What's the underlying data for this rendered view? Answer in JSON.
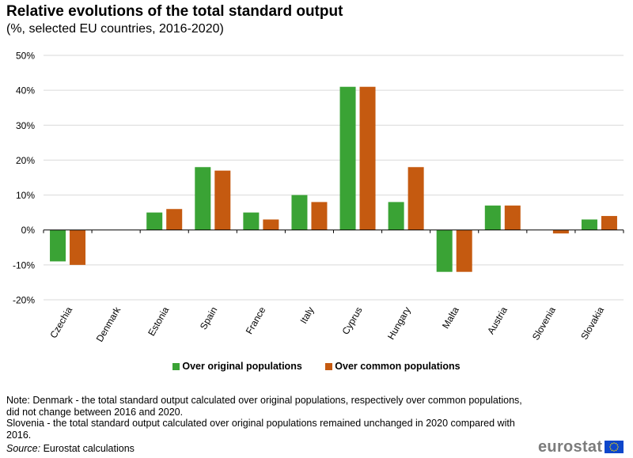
{
  "header": {
    "title": "Relative evolutions of the total standard output",
    "subtitle": "(%, selected EU countries, 2016-2020)"
  },
  "colors": {
    "original": "#3aa335",
    "common": "#c55a10",
    "grid": "#d9d9d9",
    "axis": "#000000",
    "flag": "#0e47cb",
    "flag_stars": "#ffdd00",
    "brand": "#7c7c7c"
  },
  "chart_data": {
    "type": "bar",
    "title": "Relative evolutions of the total standard output",
    "subtitle": "(%, selected EU countries, 2016-2020)",
    "xlabel": "",
    "ylabel": "",
    "unit": "%",
    "ylim": [
      -20,
      50
    ],
    "yticks": [
      -20,
      -10,
      0,
      10,
      20,
      30,
      40,
      50
    ],
    "ytick_labels": [
      "-20%",
      "-10%",
      "0%",
      "10%",
      "20%",
      "30%",
      "40%",
      "50%"
    ],
    "grid": true,
    "legend_position": "bottom",
    "categories": [
      "Czechia",
      "Denmark",
      "Estonia",
      "Spain",
      "France",
      "Italy",
      "Cyprus",
      "Hungary",
      "Malta",
      "Austria",
      "Slovenia",
      "Slovakia"
    ],
    "series": [
      {
        "name": "Over original populations",
        "values": [
          -9,
          0,
          5,
          18,
          5,
          10,
          41,
          8,
          -12,
          7,
          0,
          3
        ]
      },
      {
        "name": "Over common populations",
        "values": [
          -10,
          0,
          6,
          17,
          3,
          8,
          41,
          18,
          -12,
          7,
          -1,
          4
        ]
      }
    ]
  },
  "legend": {
    "original_label": "Over original populations",
    "common_label": "Over common populations"
  },
  "notes": {
    "line1": "Note: Denmark - the total standard output calculated over original populations, respectively over common populations, did not change between 2016 and 2020.",
    "line2": "Slovenia - the total standard output calculated over original populations remained unchanged in 2020 compared with 2016."
  },
  "source": {
    "label": "Source:",
    "text": "Eurostat calculations"
  },
  "brand": {
    "name": "eurostat",
    "flag_icon": "eu-flag-icon"
  }
}
